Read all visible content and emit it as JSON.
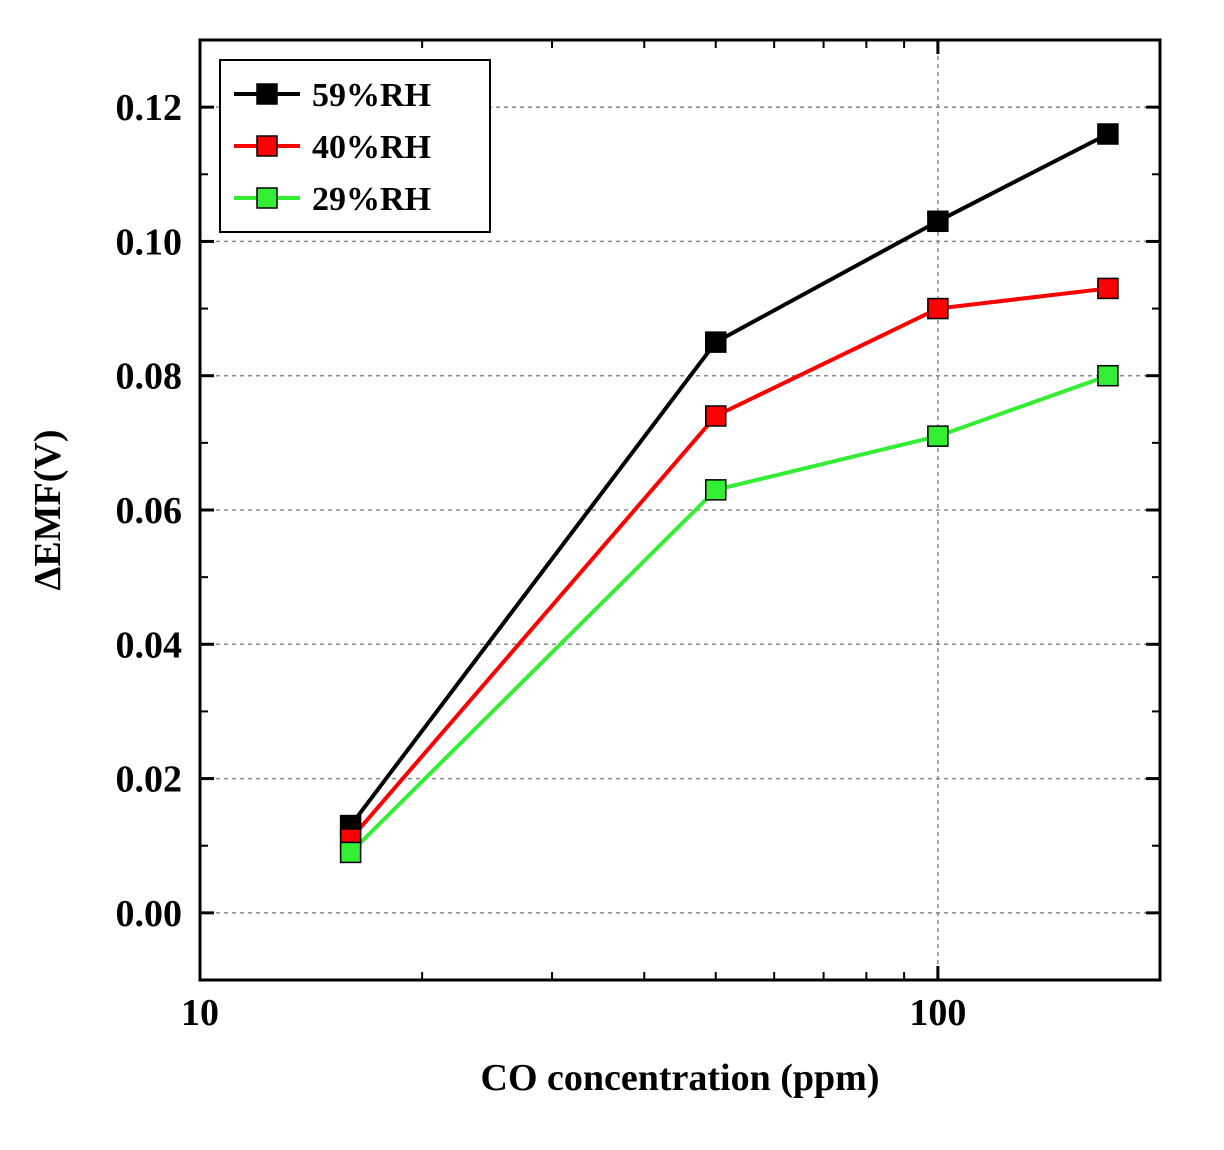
{
  "chart": {
    "type": "line",
    "background_color": "#ffffff",
    "plot_border_color": "#000000",
    "plot_border_width": 3,
    "grid_color": "#888888",
    "grid_dash": "4,4",
    "xlabel": "CO concentration (ppm)",
    "ylabel": "ΔEMF(V)",
    "label_fontsize": 38,
    "tick_fontsize": 38,
    "xscale": "log",
    "xlim": [
      10,
      200
    ],
    "xticks": [
      10,
      100
    ],
    "xtick_labels": [
      "10",
      "100"
    ],
    "xminor": [
      20,
      30,
      40,
      50,
      60,
      70,
      80,
      90,
      200
    ],
    "yscale": "linear",
    "ylim": [
      -0.01,
      0.13
    ],
    "yticks": [
      0.0,
      0.02,
      0.04,
      0.06,
      0.08,
      0.1,
      0.12
    ],
    "ytick_labels": [
      "0.00",
      "0.02",
      "0.04",
      "0.06",
      "0.08",
      "0.10",
      "0.12"
    ],
    "yminor": [
      0.01,
      0.03,
      0.05,
      0.07,
      0.09,
      0.11
    ],
    "line_width": 4,
    "marker_size": 20,
    "marker_shape": "square",
    "series": [
      {
        "name": "59%RH",
        "color": "#000000",
        "marker_color": "#000000",
        "x": [
          16,
          50,
          100,
          170
        ],
        "y": [
          0.013,
          0.085,
          0.103,
          0.116
        ]
      },
      {
        "name": "40%RH",
        "color": "#ff0000",
        "marker_color": "#ff0000",
        "x": [
          16,
          50,
          100,
          170
        ],
        "y": [
          0.011,
          0.074,
          0.09,
          0.093
        ]
      },
      {
        "name": "29%RH",
        "color": "#33ee33",
        "marker_color": "#33ee33",
        "x": [
          16,
          50,
          100,
          170
        ],
        "y": [
          0.009,
          0.063,
          0.071,
          0.08
        ]
      }
    ],
    "legend": {
      "position": "top-left",
      "border_color": "#000000",
      "border_width": 2,
      "background": "#ffffff",
      "fontsize": 34
    }
  }
}
